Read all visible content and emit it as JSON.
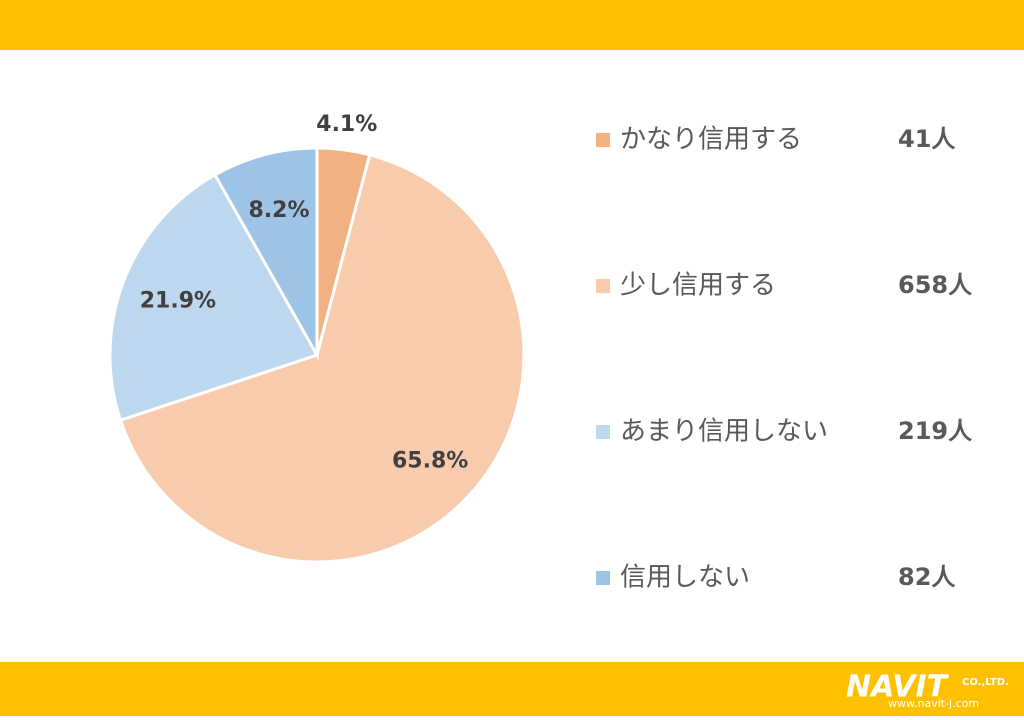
{
  "chart_data": {
    "type": "pie",
    "categories": [
      "かなり信用する",
      "少し信用する",
      "あまり信用しない",
      "信用しない"
    ],
    "values": [
      4.1,
      65.8,
      21.9,
      8.2
    ],
    "value_labels": [
      "4.1%",
      "65.8%",
      "21.9%",
      "8.2%"
    ],
    "count_labels": [
      "41人",
      "658人",
      "219人",
      "82人"
    ],
    "colors": [
      "#f1b183",
      "#f8cbad",
      "#bdd7ee",
      "#9dc3e6"
    ],
    "legend": "right"
  },
  "footer": {
    "logo": "NAVIT",
    "company": "CO.,LTD.",
    "url": "www.navit-j.com"
  }
}
